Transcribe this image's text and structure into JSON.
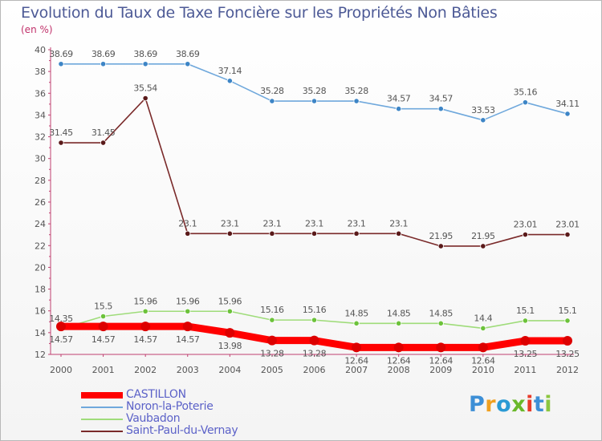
{
  "header": {
    "title": "Evolution du Taux de Taxe Foncière sur les Propriétés Non Bâties",
    "subtitle": "(en %)"
  },
  "brand": {
    "logo_letters": [
      "P",
      "r",
      "o",
      "x",
      "i",
      "t",
      "i"
    ],
    "logo_colors": [
      "#3d8fd6",
      "#f0a020",
      "#2a9ad4",
      "#6ab82a",
      "#e83b2a",
      "#3d8fd6",
      "#8bc63f"
    ]
  },
  "chart_data": {
    "type": "line",
    "title": "Evolution du Taux de Taxe Foncière sur les Propriétés Non Bâties",
    "ylabel": "(en %)",
    "xlabel": "",
    "ylim": [
      12,
      40
    ],
    "ytick_step": 2,
    "grid": false,
    "legend_position": "bottom-left",
    "categories": [
      "2000",
      "2001",
      "2002",
      "2003",
      "2004",
      "2005",
      "2006",
      "2007",
      "2008",
      "2009",
      "2010",
      "2011",
      "2012"
    ],
    "series": [
      {
        "name": "Noron-la-Poterie",
        "color": "#6fa8dc",
        "marker_color": "#3d85c6",
        "values": [
          38.69,
          38.69,
          38.69,
          38.69,
          37.14,
          35.28,
          35.28,
          35.28,
          34.57,
          34.57,
          33.53,
          35.16,
          34.11
        ],
        "labels": [
          "38.69",
          "38.69",
          "38.69",
          "38.69",
          "37.14",
          "35.28",
          "35.28",
          "35.28",
          "34.57",
          "34.57",
          "33.53",
          "35.16",
          "34.11"
        ]
      },
      {
        "name": "Saint-Paul-du-Vernay",
        "color": "#7a2a2a",
        "marker_color": "#5a1a1a",
        "values": [
          31.45,
          31.45,
          35.54,
          23.1,
          23.1,
          23.1,
          23.1,
          23.1,
          23.1,
          21.95,
          21.95,
          23.01,
          23.01
        ],
        "labels": [
          "31.45",
          "31.45",
          "35.54",
          "23.1",
          "23.1",
          "23.1",
          "23.1",
          "23.1",
          "23.1",
          "21.95",
          "21.95",
          "23.01",
          "23.01"
        ]
      },
      {
        "name": "Vaubadon",
        "color": "#9fdc7a",
        "marker_color": "#6cc23a",
        "values": [
          14.35,
          15.5,
          15.96,
          15.96,
          15.96,
          15.16,
          15.16,
          14.85,
          14.85,
          14.85,
          14.4,
          15.1,
          15.1
        ],
        "labels": [
          "14.35",
          "15.5",
          "15.96",
          "15.96",
          "15.96",
          "15.16",
          "15.16",
          "14.85",
          "14.85",
          "14.85",
          "14.4",
          "15.1",
          "15.1"
        ]
      },
      {
        "name": "CASTILLON",
        "color": "#ff0000",
        "marker_color": "#dd0000",
        "values": [
          14.57,
          14.57,
          14.57,
          14.57,
          13.98,
          13.28,
          13.28,
          12.64,
          12.64,
          12.64,
          12.64,
          13.25,
          13.25
        ],
        "labels": [
          "14.57",
          "14.57",
          "14.57",
          "14.57",
          "13.98",
          "13.28",
          "13.28",
          "12.64",
          "12.64",
          "12.64",
          "12.64",
          "13.25",
          "13.25"
        ]
      }
    ],
    "legend": [
      {
        "name": "CASTILLON",
        "color": "#ff0000",
        "thickness": "thick"
      },
      {
        "name": "Noron-la-Poterie",
        "color": "#6fa8dc",
        "thickness": "thin"
      },
      {
        "name": "Vaubadon",
        "color": "#9fdc7a",
        "thickness": "thin"
      },
      {
        "name": "Saint-Paul-du-Vernay",
        "color": "#7a2a2a",
        "thickness": "thin"
      }
    ]
  }
}
